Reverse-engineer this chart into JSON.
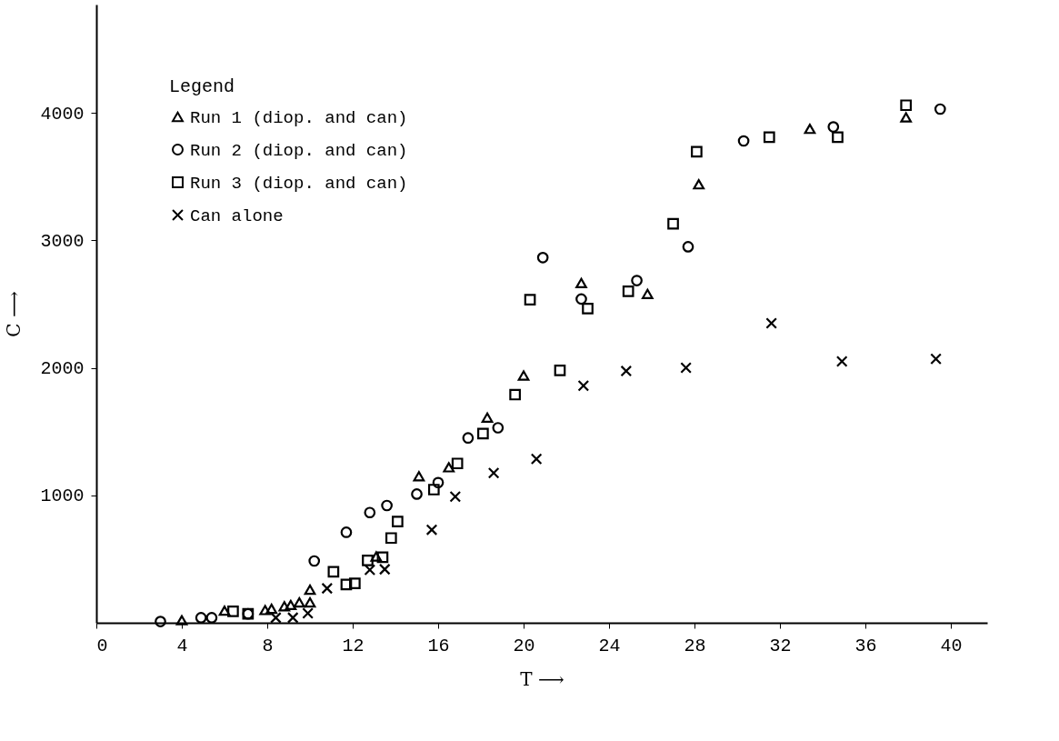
{
  "chart_data": {
    "type": "scatter",
    "xlabel": "T ⟶",
    "ylabel": "C ⟶",
    "legend_title": "Legend",
    "legend": "top left",
    "grid": false,
    "xlim": [
      0,
      41.7
    ],
    "ylim": [
      0,
      4850
    ],
    "xticks": [
      0,
      4,
      8,
      12,
      16,
      20,
      24,
      28,
      32,
      36,
      40
    ],
    "yticks": [
      1000,
      2000,
      3000,
      4000
    ],
    "series": [
      {
        "name": "Run 1 (diop. and can)",
        "color": "#000000",
        "marker": "triangle",
        "x": [
          4.0,
          6.0,
          7.9,
          8.2,
          8.8,
          9.1,
          9.5,
          10.0,
          10.0,
          13.1,
          15.1,
          16.5,
          18.3,
          20.0,
          22.7,
          25.8,
          28.2,
          33.4,
          37.9
        ],
        "values": [
          20,
          95,
          100,
          110,
          130,
          140,
          160,
          160,
          260,
          520,
          1150,
          1220,
          1610,
          1940,
          2665,
          2580,
          3440,
          3875,
          3965
        ]
      },
      {
        "name": "Run 2 (diop. and can)",
        "color": "#000000",
        "marker": "circle",
        "x": [
          3.0,
          4.9,
          5.4,
          7.1,
          10.2,
          11.7,
          12.8,
          13.6,
          15.0,
          16.0,
          17.4,
          18.8,
          20.9,
          22.7,
          25.3,
          27.7,
          30.3,
          34.5,
          39.5
        ],
        "values": [
          10,
          40,
          40,
          70,
          485,
          710,
          865,
          920,
          1010,
          1100,
          1450,
          1530,
          2865,
          2540,
          2685,
          2950,
          3780,
          3890,
          4030
        ]
      },
      {
        "name": "Run 3 (diop. and can)",
        "color": "#000000",
        "marker": "square",
        "x": [
          6.4,
          7.1,
          11.1,
          11.7,
          12.1,
          12.7,
          13.4,
          13.8,
          14.1,
          15.8,
          16.9,
          18.1,
          19.6,
          20.3,
          21.7,
          23.0,
          24.9,
          27.0,
          28.1,
          31.5,
          34.7,
          37.9
        ],
        "values": [
          90,
          70,
          400,
          300,
          310,
          490,
          515,
          665,
          795,
          1045,
          1250,
          1485,
          1790,
          2535,
          1980,
          2465,
          2600,
          3130,
          3695,
          3810,
          3810,
          4060
        ]
      },
      {
        "name": "Can alone",
        "color": "#000000",
        "marker": "cross",
        "x": [
          8.4,
          9.2,
          9.9,
          10.8,
          12.8,
          13.5,
          15.7,
          16.8,
          18.6,
          20.6,
          22.8,
          24.8,
          27.6,
          31.6,
          34.9,
          39.3
        ],
        "values": [
          40,
          40,
          75,
          270,
          415,
          420,
          730,
          990,
          1175,
          1285,
          1860,
          1975,
          2000,
          2350,
          2050,
          2070
        ]
      }
    ]
  }
}
